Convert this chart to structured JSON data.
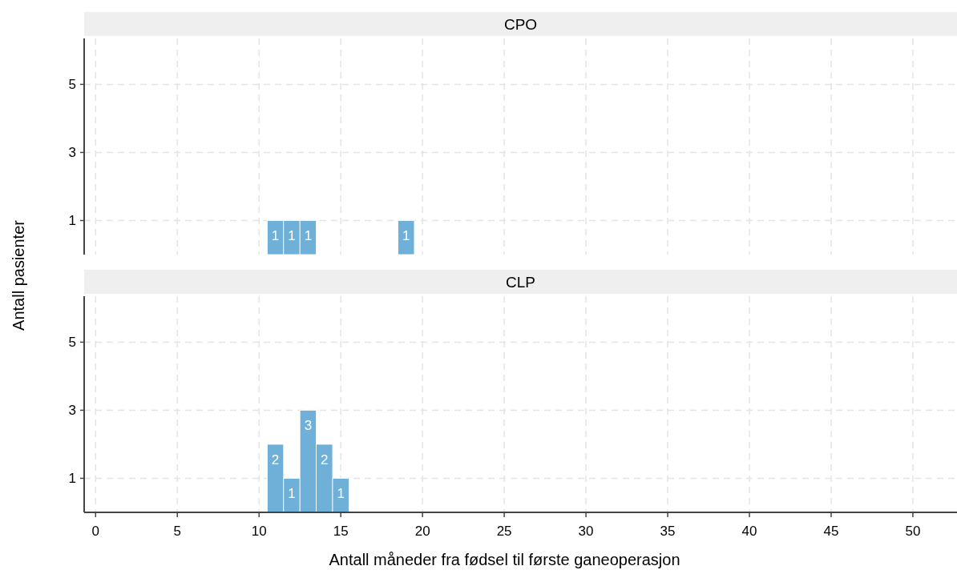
{
  "chart_data": [
    {
      "type": "histogram",
      "title": "CPO",
      "ylabel": "Antall pasienter",
      "bins": [
        10.5,
        11.5,
        12.5,
        13.5,
        14.5,
        15.5,
        16.5,
        17.5,
        18.5,
        19.5
      ],
      "values": [
        1,
        1,
        1,
        0,
        0,
        0,
        0,
        0,
        1
      ],
      "value_labels": [
        "1",
        "1",
        "1",
        null,
        null,
        null,
        null,
        null,
        "1"
      ],
      "color": "#6fb0d8",
      "xlim": [
        -0.7,
        52.7
      ],
      "xticks": [
        0,
        5,
        10,
        15,
        20,
        25,
        30,
        35,
        40,
        45,
        50
      ],
      "ylim": [
        0,
        6.35
      ],
      "yticks": [
        1,
        3,
        5
      ],
      "grid": true,
      "tick_labels": "y"
    },
    {
      "type": "histogram",
      "title": "CLP",
      "xlabel": "Antall måneder fra fødsel til første ganeoperasjon",
      "bins": [
        10.5,
        11.5,
        12.5,
        13.5,
        14.5,
        15.5
      ],
      "values": [
        2,
        1,
        3,
        2,
        1
      ],
      "value_labels": [
        "2",
        "1",
        "3",
        "2",
        "1"
      ],
      "color": "#6fb0d8",
      "xlim": [
        -0.7,
        52.7
      ],
      "xticks": [
        0,
        5,
        10,
        15,
        20,
        25,
        30,
        35,
        40,
        45,
        50
      ],
      "ylim": [
        0,
        6.35
      ],
      "yticks": [
        1,
        3,
        5
      ],
      "grid": true
    }
  ]
}
